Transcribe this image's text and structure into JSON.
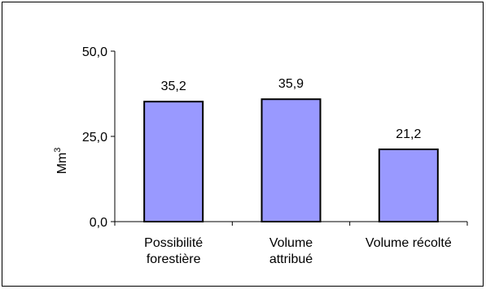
{
  "chart_data": {
    "type": "bar",
    "categories": [
      [
        "Possibilité",
        "forestière"
      ],
      [
        "Volume",
        "attribué"
      ],
      [
        "Volume récolté"
      ]
    ],
    "values": [
      35.2,
      35.9,
      21.2
    ],
    "value_labels": [
      "35,2",
      "35,9",
      "21,2"
    ],
    "ylabel": "Mm",
    "ylabel_superscript": "3",
    "ylim": [
      0,
      50
    ],
    "yticks": [
      0,
      25,
      50
    ],
    "ytick_labels": [
      "0,0",
      "25,0",
      "50,0"
    ],
    "grid": false,
    "legend": "none",
    "bar_color": "#9999FF",
    "bar_edge_color": "#000000"
  }
}
